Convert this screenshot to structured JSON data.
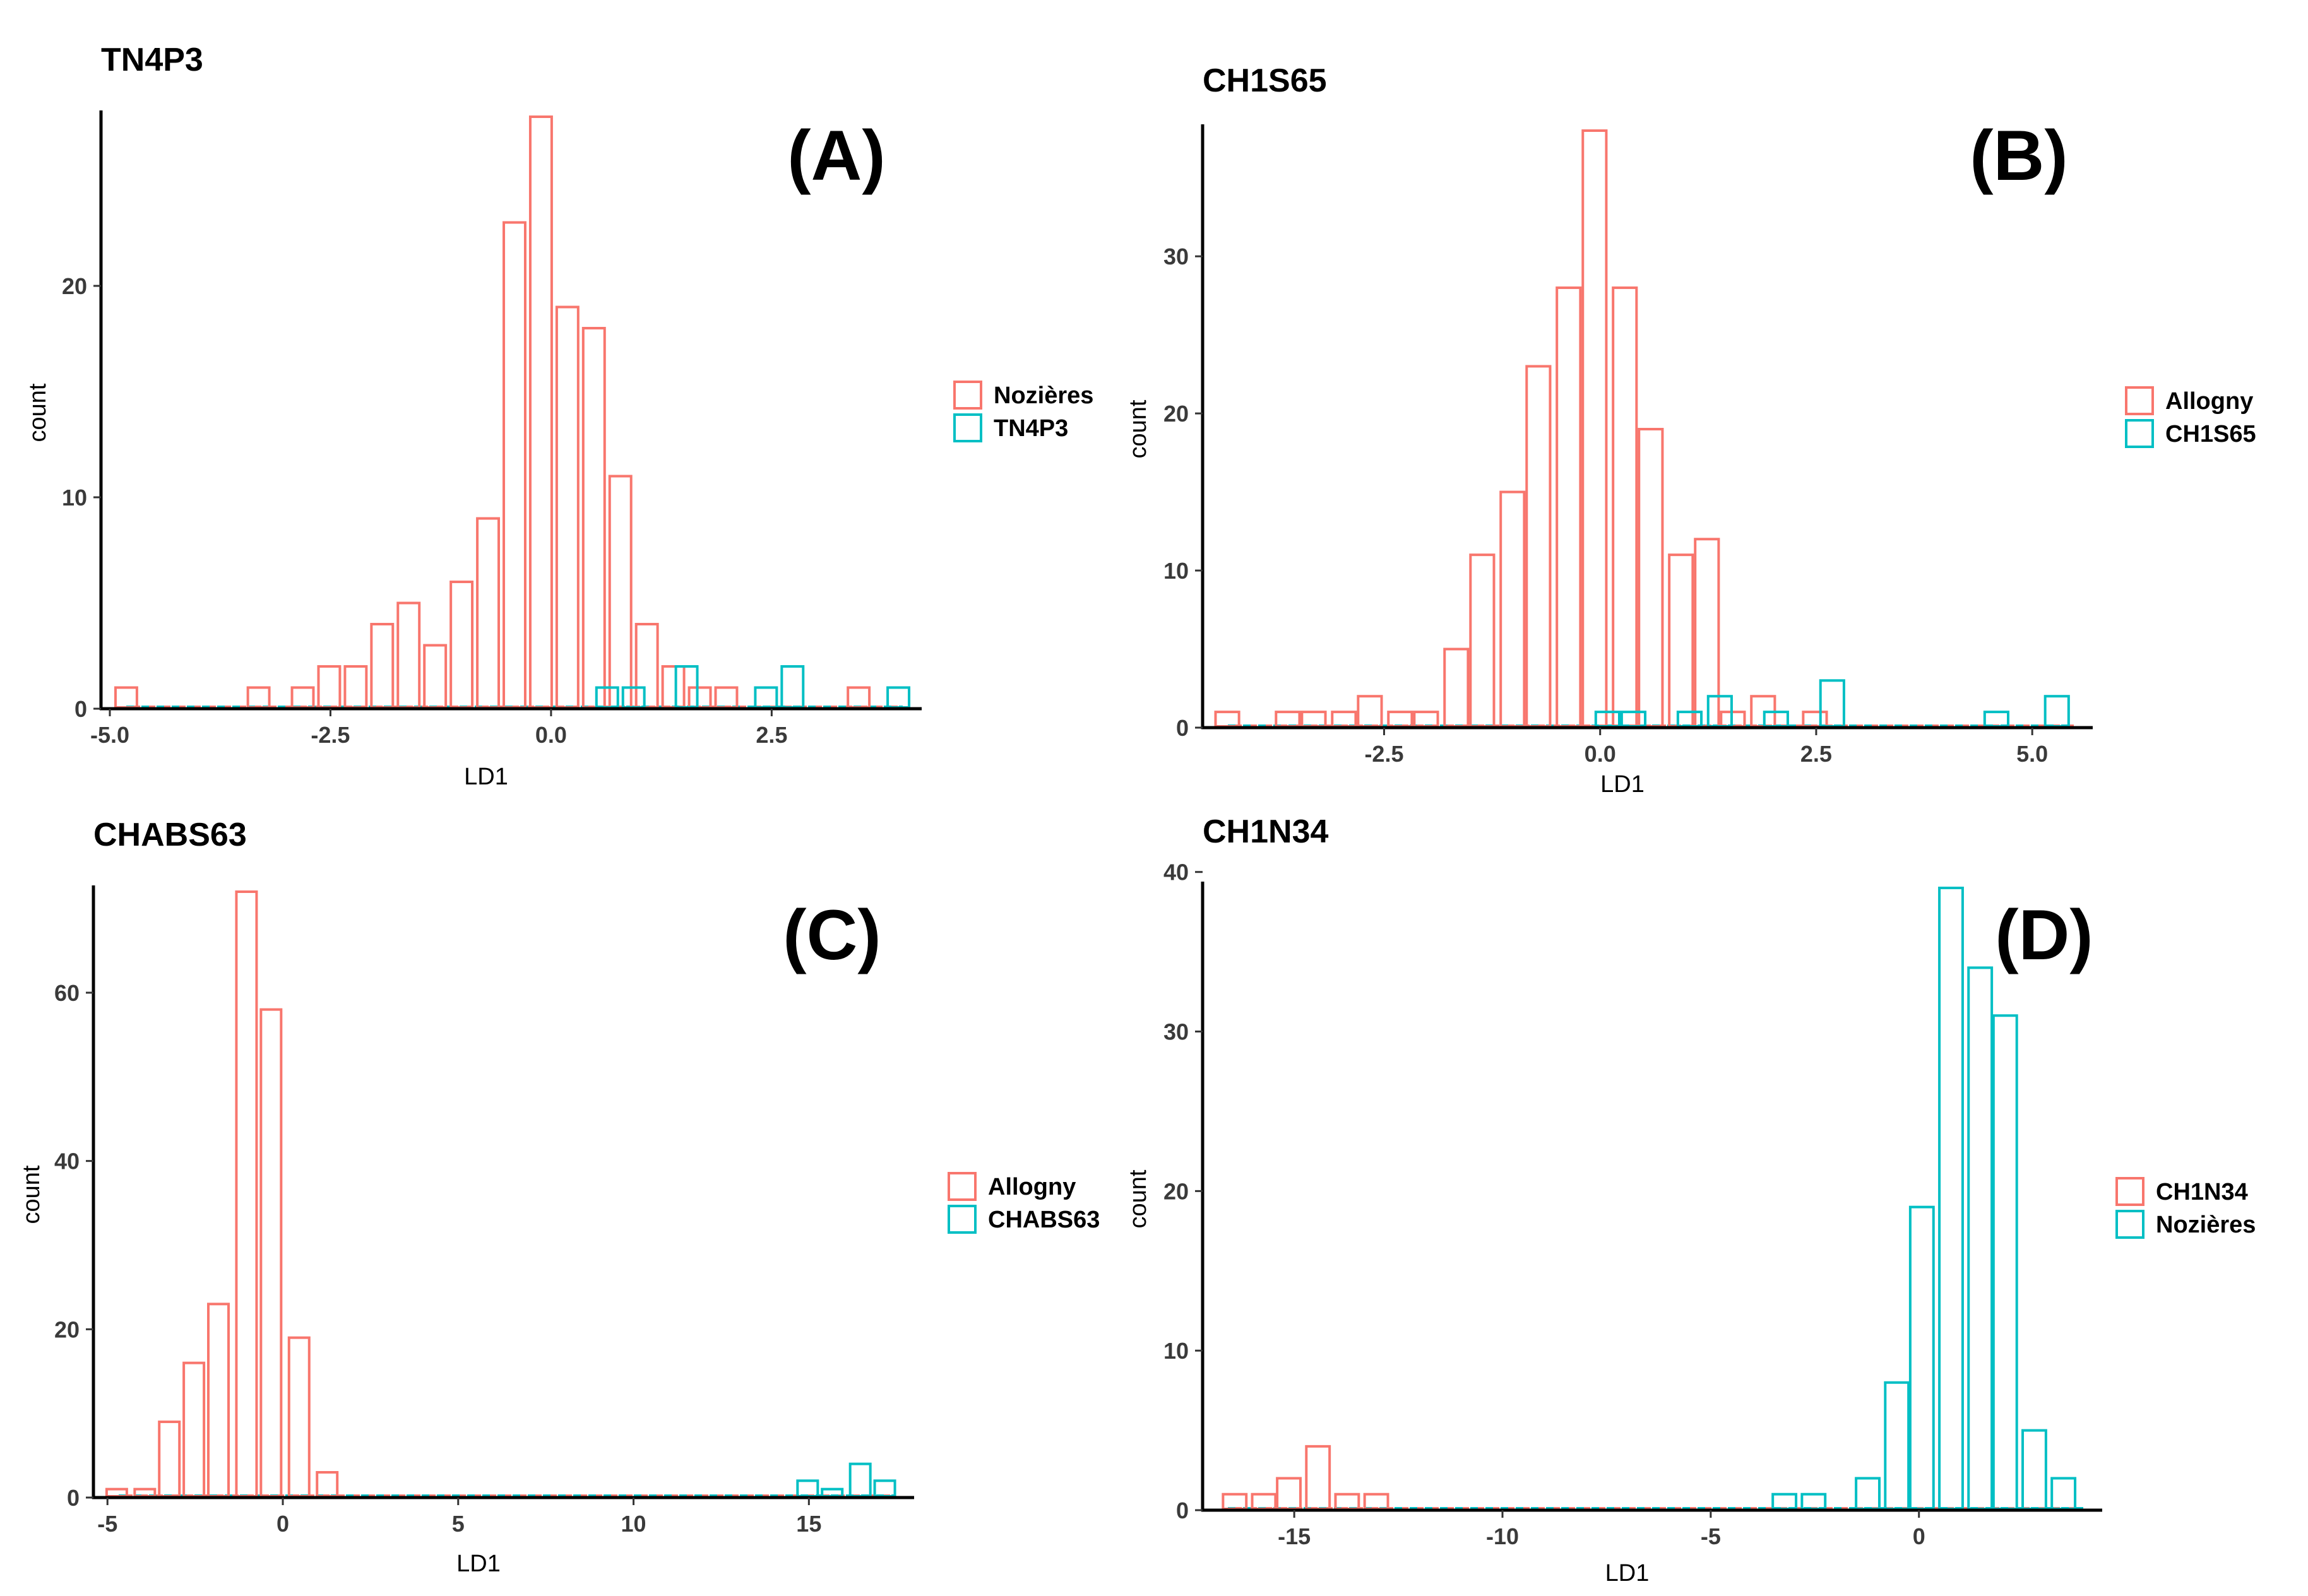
{
  "chart_data": [
    {
      "type": "bar",
      "title": "TN4P3",
      "panel_letter": "(A)",
      "xlabel": "LD1",
      "ylabel": "count",
      "xlim": [
        -5.1,
        4.2
      ],
      "ylim": [
        0,
        28
      ],
      "x_ticks": [
        -5.0,
        -2.5,
        0.0,
        2.5
      ],
      "x_tick_labels": [
        "-5.0",
        "-2.5",
        "0.0",
        "2.5"
      ],
      "y_ticks": [
        0,
        10,
        20
      ],
      "y_tick_labels": [
        "0",
        "10",
        "20"
      ],
      "bin_width": 0.3,
      "colors": {
        "series1": "#F8766D",
        "series2": "#00BFC4"
      },
      "legend": [
        "Nozières",
        "TN4P3"
      ],
      "series": [
        {
          "name": "Nozières",
          "bins": [
            [
              -4.8,
              1
            ],
            [
              -3.3,
              1
            ],
            [
              -2.8,
              1
            ],
            [
              -2.5,
              2
            ],
            [
              -2.2,
              2
            ],
            [
              -1.9,
              4
            ],
            [
              -1.6,
              5
            ],
            [
              -1.3,
              3
            ],
            [
              -1.0,
              6
            ],
            [
              -0.7,
              9
            ],
            [
              -0.4,
              23
            ],
            [
              -0.1,
              28
            ],
            [
              0.2,
              19
            ],
            [
              0.5,
              18
            ],
            [
              0.8,
              11
            ],
            [
              1.1,
              4
            ],
            [
              1.4,
              2
            ],
            [
              1.7,
              1
            ],
            [
              2.0,
              1
            ],
            [
              3.5,
              1
            ]
          ]
        },
        {
          "name": "TN4P3",
          "bins": [
            [
              0.65,
              1
            ],
            [
              0.95,
              1
            ],
            [
              1.55,
              2
            ],
            [
              2.45,
              1
            ],
            [
              2.75,
              2
            ],
            [
              3.95,
              1
            ]
          ]
        }
      ]
    },
    {
      "type": "bar",
      "title": "CH1S65",
      "panel_letter": "(B)",
      "xlabel": "LD1",
      "ylabel": "count",
      "xlim": [
        -4.6,
        5.7
      ],
      "ylim": [
        0,
        38
      ],
      "x_ticks": [
        -2.5,
        0.0,
        2.5,
        5.0
      ],
      "x_tick_labels": [
        "-2.5",
        "0.0",
        "2.5",
        "5.0"
      ],
      "y_ticks": [
        0,
        10,
        20,
        30
      ],
      "y_tick_labels": [
        "0",
        "10",
        "20",
        "30"
      ],
      "bin_width": 0.33,
      "colors": {
        "series1": "#F8766D",
        "series2": "#00BFC4"
      },
      "legend": [
        "Allogny",
        "CH1S65"
      ],
      "series": [
        {
          "name": "Allogny",
          "bins": [
            [
              -4.3,
              1
            ],
            [
              -3.6,
              1
            ],
            [
              -3.3,
              1
            ],
            [
              -2.95,
              1
            ],
            [
              -2.65,
              2
            ],
            [
              -2.3,
              1
            ],
            [
              -2.0,
              1
            ],
            [
              -1.65,
              5
            ],
            [
              -1.35,
              11
            ],
            [
              -1.0,
              15
            ],
            [
              -0.7,
              23
            ],
            [
              -0.35,
              28
            ],
            [
              -0.05,
              38
            ],
            [
              0.3,
              28
            ],
            [
              0.6,
              19
            ],
            [
              0.95,
              11
            ],
            [
              1.25,
              12
            ],
            [
              1.55,
              1
            ],
            [
              1.9,
              2
            ],
            [
              2.5,
              1
            ]
          ]
        },
        {
          "name": "CH1S65",
          "bins": [
            [
              0.1,
              1
            ],
            [
              0.4,
              1
            ],
            [
              1.05,
              1
            ],
            [
              1.4,
              2
            ],
            [
              2.05,
              1
            ],
            [
              2.7,
              3
            ],
            [
              4.6,
              1
            ],
            [
              5.3,
              2
            ]
          ]
        }
      ]
    },
    {
      "type": "bar",
      "title": "CHABS63",
      "panel_letter": "(C)",
      "xlabel": "LD1",
      "ylabel": "count",
      "xlim": [
        -5.4,
        18.0
      ],
      "ylim": [
        0,
        72
      ],
      "x_ticks": [
        -5,
        0,
        5,
        10,
        15
      ],
      "x_tick_labels": [
        "-5",
        "0",
        "5",
        "10",
        "15"
      ],
      "y_ticks": [
        0,
        20,
        40,
        60
      ],
      "y_tick_labels": [
        "0",
        "20",
        "40",
        "60"
      ],
      "bin_width": 0.72,
      "colors": {
        "series1": "#F8766D",
        "series2": "#00BFC4"
      },
      "legend": [
        "Allogny",
        "CHABS63"
      ],
      "series": [
        {
          "name": "Allogny",
          "bins": [
            [
              -4.7,
              1
            ],
            [
              -3.9,
              1
            ],
            [
              -3.2,
              9
            ],
            [
              -2.5,
              16
            ],
            [
              -1.8,
              23
            ],
            [
              -1.0,
              72
            ],
            [
              -0.3,
              58
            ],
            [
              0.5,
              19
            ],
            [
              1.3,
              3
            ]
          ]
        },
        {
          "name": "CHABS63",
          "bins": [
            [
              15.0,
              2
            ],
            [
              15.7,
              1
            ],
            [
              16.5,
              4
            ],
            [
              17.2,
              2
            ]
          ]
        }
      ]
    },
    {
      "type": "bar",
      "title": "CH1N34",
      "panel_letter": "(D)",
      "xlabel": "LD1",
      "ylabel": "count",
      "xlim": [
        -17.2,
        4.4
      ],
      "ylim": [
        0,
        39
      ],
      "x_ticks": [
        -15,
        -10,
        -5,
        0
      ],
      "x_tick_labels": [
        "-15",
        "-10",
        "-5",
        "0"
      ],
      "y_ticks": [
        0,
        10,
        20,
        30,
        40
      ],
      "y_tick_labels": [
        "0",
        "10",
        "20",
        "30",
        "40"
      ],
      "bin_width": 0.68,
      "colors": {
        "series1": "#F8766D",
        "series2": "#00BFC4"
      },
      "legend": [
        "CH1N34",
        "Nozières"
      ],
      "series": [
        {
          "name": "CH1N34",
          "bins": [
            [
              -16.4,
              1
            ],
            [
              -15.7,
              1
            ],
            [
              -15.1,
              2
            ],
            [
              -14.4,
              4
            ],
            [
              -13.7,
              1
            ],
            [
              -13.0,
              1
            ]
          ]
        },
        {
          "name": "Nozières",
          "bins": [
            [
              -3.2,
              1
            ],
            [
              -2.5,
              1
            ],
            [
              -1.2,
              2
            ],
            [
              -0.5,
              8
            ],
            [
              0.1,
              19
            ],
            [
              0.8,
              39
            ],
            [
              1.5,
              34
            ],
            [
              2.1,
              31
            ],
            [
              2.8,
              5
            ],
            [
              3.5,
              2
            ]
          ]
        }
      ]
    }
  ]
}
